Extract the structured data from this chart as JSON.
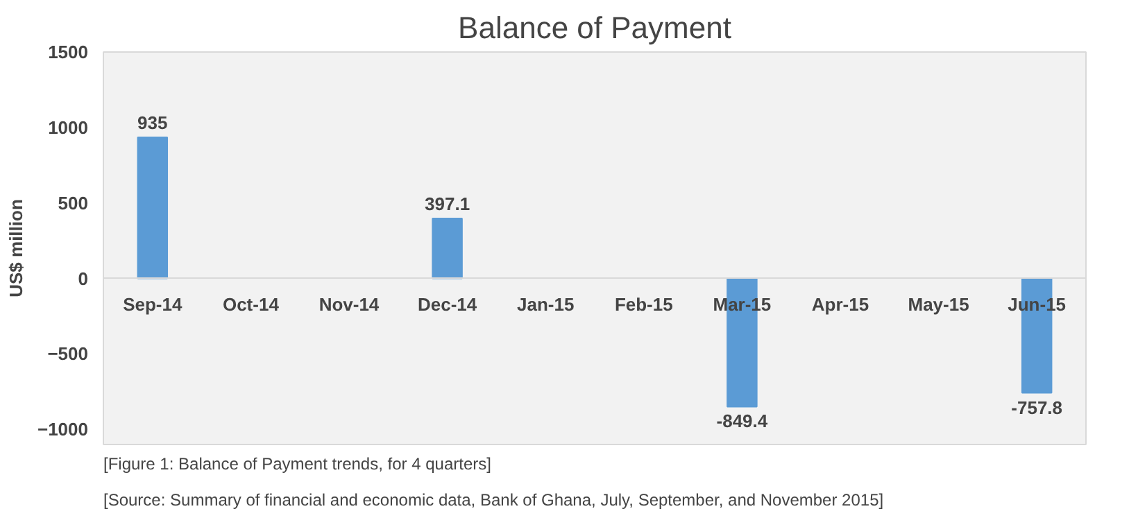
{
  "chart_data": {
    "type": "bar",
    "title": "Balance of Payment",
    "ylabel": "US$ million",
    "categories": [
      "Sep-14",
      "Oct-14",
      "Nov-14",
      "Dec-14",
      "Jan-15",
      "Feb-15",
      "Mar-15",
      "Apr-15",
      "May-15",
      "Jun-15"
    ],
    "values": [
      935,
      null,
      null,
      397.1,
      null,
      null,
      -849.4,
      null,
      null,
      -757.8
    ],
    "color": "#5b9bd5",
    "data_labels": true,
    "ylim": [
      -1100,
      1500
    ],
    "yticks": [
      -1000,
      -500,
      0,
      500,
      1000,
      1500
    ],
    "grid": false,
    "annotations": [
      "[Figure 1: Balance of Payment trends, for 4 quarters]",
      "[Source: Summary of financial and economic data, Bank of Ghana, July, September, and November 2015]"
    ]
  }
}
